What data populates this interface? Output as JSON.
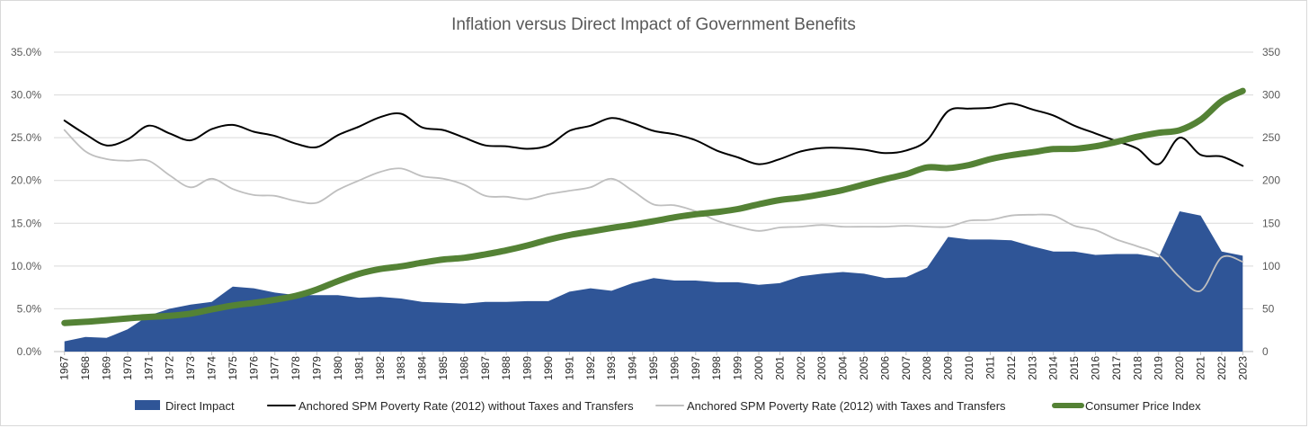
{
  "chart_data": {
    "type": "area",
    "title": "Inflation versus Direct Impact of Government Benefits",
    "categories": [
      "1967",
      "1968",
      "1969",
      "1970",
      "1971",
      "1972",
      "1973",
      "1974",
      "1975",
      "1976",
      "1977",
      "1978",
      "1979",
      "1980",
      "1981",
      "1982",
      "1983",
      "1984",
      "1985",
      "1986",
      "1987",
      "1988",
      "1989",
      "1990",
      "1991",
      "1992",
      "1993",
      "1994",
      "1995",
      "1996",
      "1997",
      "1998",
      "1999",
      "2000",
      "2001",
      "2002",
      "2003",
      "2004",
      "2005",
      "2006",
      "2007",
      "2008",
      "2009",
      "2010",
      "2011",
      "2012",
      "2013",
      "2014",
      "2015",
      "2016",
      "2017",
      "2018",
      "2019",
      "2020",
      "2021",
      "2022",
      "2023"
    ],
    "left_axis": {
      "ylim": [
        0,
        35
      ],
      "ticks": [
        "0.0%",
        "5.0%",
        "10.0%",
        "15.0%",
        "20.0%",
        "25.0%",
        "30.0%",
        "35.0%"
      ]
    },
    "right_axis": {
      "ylim": [
        0,
        350
      ],
      "ticks": [
        "0",
        "50",
        "100",
        "150",
        "200",
        "250",
        "300",
        "350"
      ]
    },
    "grid": true,
    "legend_position": "bottom",
    "series": [
      {
        "name": "Direct Impact",
        "kind": "area",
        "axis": "left",
        "color": "#2f5597",
        "values": [
          1.2,
          1.7,
          1.6,
          2.6,
          4.2,
          5.0,
          5.5,
          5.8,
          7.6,
          7.4,
          6.9,
          6.6,
          6.6,
          6.6,
          6.3,
          6.4,
          6.2,
          5.8,
          5.7,
          5.6,
          5.8,
          5.8,
          5.9,
          5.9,
          7.0,
          7.4,
          7.1,
          8.0,
          8.6,
          8.3,
          8.3,
          8.1,
          8.1,
          7.8,
          8.0,
          8.8,
          9.1,
          9.3,
          9.1,
          8.6,
          8.7,
          9.8,
          13.4,
          13.1,
          13.1,
          13.0,
          12.3,
          11.7,
          11.7,
          11.3,
          11.4,
          11.4,
          11.0,
          16.4,
          15.9,
          11.7,
          11.2
        ]
      },
      {
        "name": "Anchored SPM Poverty Rate (2012) without Taxes and Transfers",
        "kind": "line",
        "axis": "left",
        "color": "#000000",
        "values": [
          27.0,
          25.4,
          24.1,
          24.8,
          26.4,
          25.5,
          24.7,
          26.0,
          26.5,
          25.7,
          25.2,
          24.3,
          23.9,
          25.3,
          26.3,
          27.4,
          27.8,
          26.2,
          25.9,
          25.0,
          24.1,
          24.0,
          23.7,
          24.1,
          25.8,
          26.4,
          27.3,
          26.7,
          25.8,
          25.4,
          24.7,
          23.5,
          22.7,
          21.9,
          22.5,
          23.4,
          23.8,
          23.8,
          23.6,
          23.2,
          23.5,
          24.7,
          28.1,
          28.4,
          28.5,
          29.0,
          28.3,
          27.6,
          26.4,
          25.5,
          24.6,
          23.7,
          21.9,
          25.0,
          23.0,
          22.8,
          21.7
        ]
      },
      {
        "name": "Anchored SPM Poverty Rate (2012) with Taxes and Transfers",
        "kind": "line",
        "axis": "left",
        "color": "#bfbfbf",
        "values": [
          25.9,
          23.4,
          22.5,
          22.3,
          22.3,
          20.6,
          19.2,
          20.2,
          19.0,
          18.3,
          18.2,
          17.6,
          17.4,
          18.9,
          20.0,
          21.0,
          21.4,
          20.5,
          20.2,
          19.5,
          18.2,
          18.1,
          17.8,
          18.4,
          18.8,
          19.2,
          20.2,
          18.8,
          17.2,
          17.1,
          16.4,
          15.3,
          14.6,
          14.1,
          14.5,
          14.6,
          14.8,
          14.6,
          14.6,
          14.6,
          14.7,
          14.6,
          14.6,
          15.3,
          15.4,
          15.9,
          16.0,
          15.9,
          14.7,
          14.2,
          13.1,
          12.3,
          11.3,
          8.7,
          7.1,
          11.0,
          10.5
        ]
      },
      {
        "name": "Consumer Price Index",
        "kind": "line",
        "axis": "right",
        "color": "#548235",
        "values": [
          33.4,
          34.8,
          36.7,
          38.8,
          40.5,
          41.8,
          44.4,
          49.3,
          53.8,
          56.9,
          60.6,
          65.2,
          72.6,
          82.4,
          90.9,
          96.5,
          99.6,
          103.9,
          107.6,
          109.6,
          113.6,
          118.3,
          124.0,
          130.7,
          136.2,
          140.3,
          144.5,
          148.2,
          152.4,
          156.9,
          160.5,
          163.0,
          166.6,
          172.2,
          177.1,
          179.9,
          184.0,
          188.9,
          195.3,
          201.6,
          207.3,
          215.3,
          214.5,
          218.1,
          224.9,
          229.6,
          233.0,
          236.7,
          237.0,
          240.0,
          245.1,
          251.1,
          255.7,
          258.8,
          271.0,
          292.7,
          304.7
        ]
      }
    ]
  }
}
